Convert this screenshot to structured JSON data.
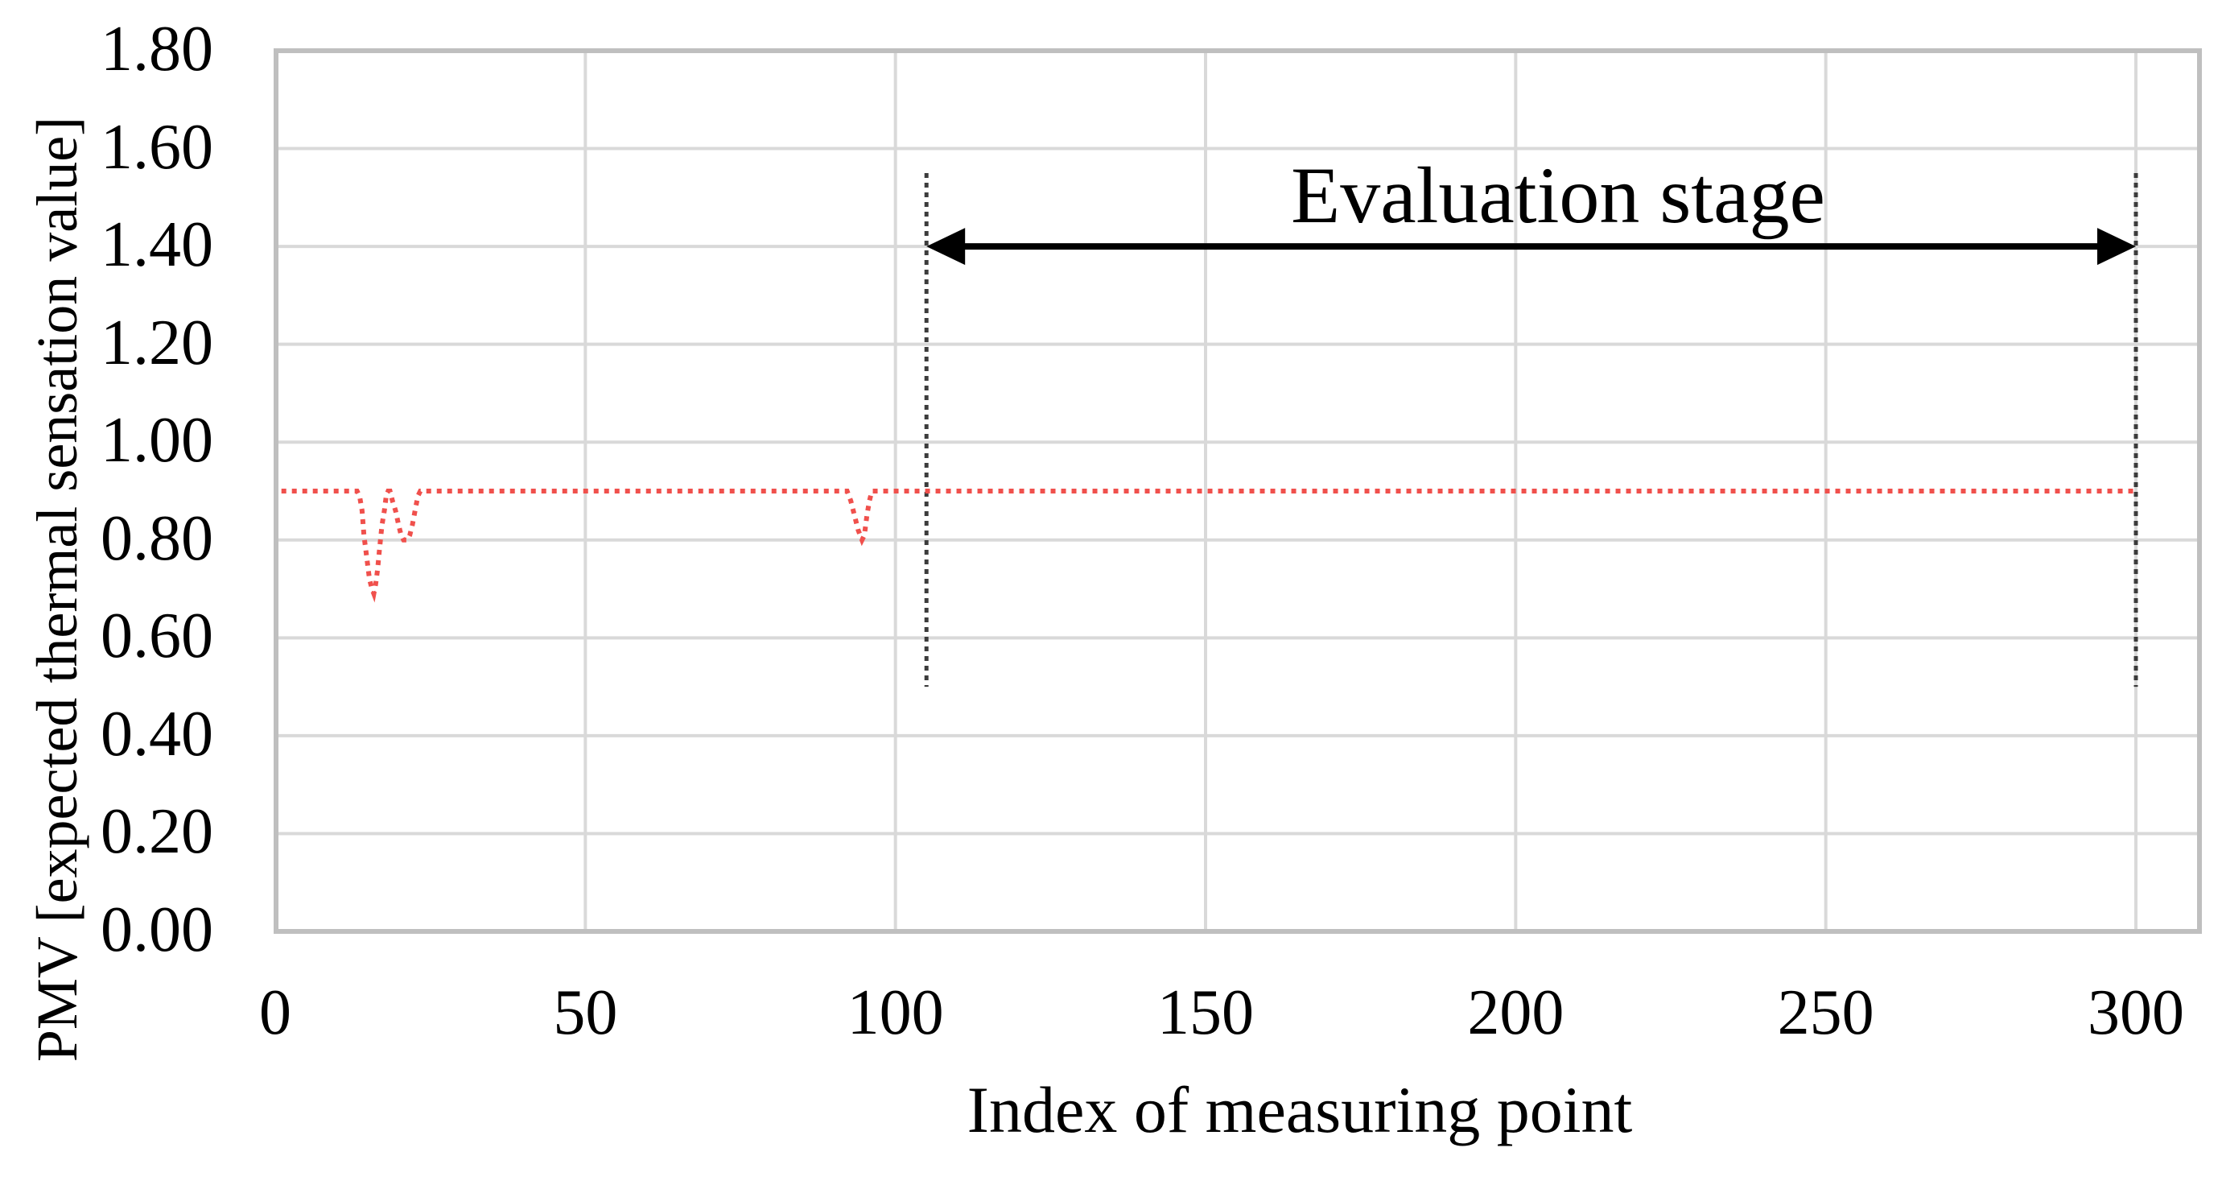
{
  "palette": {
    "background": "#FFFFFF",
    "text": "#000000",
    "plot_border": "#BFBFBF",
    "gridline": "#D9D9D9",
    "series_red": "#F0504C",
    "boundary_dotted": "#3C3C3C",
    "arrow_black": "#000000"
  },
  "chart_data": {
    "type": "line",
    "title": "",
    "xlabel": "Index of measuring point",
    "ylabel": "PMV [expected thermal sensation value]",
    "xlim": [
      0,
      310
    ],
    "ylim": [
      0,
      1.8
    ],
    "grid": true,
    "legend": "none",
    "x_ticks": [
      0,
      50,
      100,
      150,
      200,
      250,
      300
    ],
    "x_tick_labels": [
      "0",
      "50",
      "100",
      "150",
      "200",
      "250",
      "300"
    ],
    "y_ticks": [
      0.0,
      0.2,
      0.4,
      0.6,
      0.8,
      1.0,
      1.2,
      1.4,
      1.6,
      1.8
    ],
    "y_tick_labels": [
      "0.00",
      "0.20",
      "0.40",
      "0.60",
      "0.80",
      "1.00",
      "1.20",
      "1.40",
      "1.60",
      "1.80"
    ],
    "series": [
      {
        "name": "PMV expected thermal sensation",
        "style": "dotted",
        "baseline_value": 0.9,
        "points": [
          [
            1,
            0.9
          ],
          [
            13.2,
            0.9
          ],
          [
            13.6,
            0.89
          ],
          [
            14.0,
            0.86
          ],
          [
            14.3,
            0.81
          ],
          [
            14.6,
            0.78
          ],
          [
            14.9,
            0.75
          ],
          [
            15.2,
            0.72
          ],
          [
            15.6,
            0.7
          ],
          [
            15.9,
            0.69
          ],
          [
            16.2,
            0.71
          ],
          [
            16.5,
            0.74
          ],
          [
            16.8,
            0.78
          ],
          [
            17.2,
            0.83
          ],
          [
            17.6,
            0.86
          ],
          [
            17.9,
            0.89
          ],
          [
            18.2,
            0.9
          ],
          [
            18.5,
            0.9
          ],
          [
            18.9,
            0.88
          ],
          [
            19.4,
            0.86
          ],
          [
            19.9,
            0.83
          ],
          [
            20.3,
            0.81
          ],
          [
            20.7,
            0.8
          ],
          [
            21.3,
            0.8
          ],
          [
            21.7,
            0.81
          ],
          [
            22.1,
            0.83
          ],
          [
            22.4,
            0.85
          ],
          [
            22.7,
            0.87
          ],
          [
            23.0,
            0.89
          ],
          [
            23.4,
            0.9
          ],
          [
            92.2,
            0.9
          ],
          [
            92.8,
            0.88
          ],
          [
            93.4,
            0.85
          ],
          [
            94.0,
            0.82
          ],
          [
            94.6,
            0.8
          ],
          [
            95.0,
            0.81
          ],
          [
            95.4,
            0.85
          ],
          [
            95.8,
            0.88
          ],
          [
            96.2,
            0.9
          ],
          [
            300,
            0.9
          ]
        ]
      }
    ],
    "annotations": {
      "evaluation_label": "Evaluation stage",
      "arrow": {
        "x_start": 105,
        "x_end": 300,
        "y": 1.4,
        "double_headed": true
      },
      "boundary_lines": [
        {
          "x": 105,
          "y_from": 0.5,
          "y_to": 1.55
        },
        {
          "x": 300,
          "y_from": 0.5,
          "y_to": 1.55
        }
      ]
    }
  }
}
